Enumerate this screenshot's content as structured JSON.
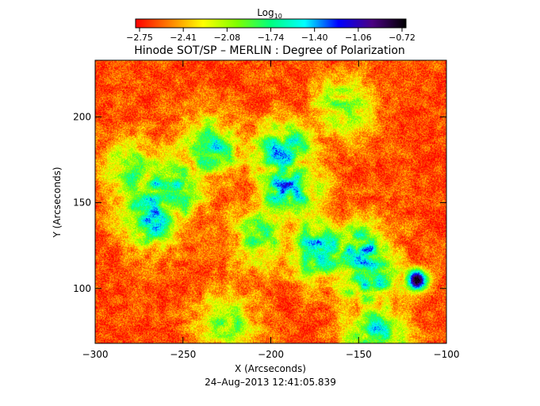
{
  "chart_data": {
    "type": "heatmap",
    "title": "Hinode SOT/SP – MERLIN : Degree of Polarization",
    "colorbar": {
      "label_main": "Log",
      "label_sub": "10",
      "ticks": [
        "−2.75",
        "−2.41",
        "−2.08",
        "−1.74",
        "−1.40",
        "−1.06",
        "−0.72"
      ],
      "min": -2.75,
      "max": -0.72,
      "colors": [
        "#ff0000",
        "#ff7f00",
        "#ffff00",
        "#7fff00",
        "#00ff7f",
        "#00ffff",
        "#0000ff",
        "#4b0082",
        "#000000"
      ]
    },
    "xlabel": "X (Arcseconds)",
    "ylabel": "Y (Arcseconds)",
    "xlim": [
      -300,
      -100
    ],
    "ylim": [
      68,
      233
    ],
    "xticks": [
      -300,
      -250,
      -200,
      -150,
      -100
    ],
    "xtick_labels": [
      "−300",
      "−250",
      "−200",
      "−150",
      "−100"
    ],
    "yticks": [
      100,
      150,
      200
    ],
    "ytick_labels": [
      "100",
      "150",
      "200"
    ],
    "background_level": -2.6,
    "features": [
      {
        "kind": "network",
        "x": -268,
        "y": 143,
        "level": -1.35
      },
      {
        "kind": "network",
        "x": -258,
        "y": 158,
        "level": -1.3
      },
      {
        "kind": "network",
        "x": -190,
        "y": 160,
        "level": -1.3
      },
      {
        "kind": "network",
        "x": -193,
        "y": 180,
        "level": -1.45
      },
      {
        "kind": "network",
        "x": -172,
        "y": 123,
        "level": -1.3
      },
      {
        "kind": "network",
        "x": -150,
        "y": 120,
        "level": -1.3
      },
      {
        "kind": "network",
        "x": -145,
        "y": 108,
        "level": -1.4
      },
      {
        "kind": "network",
        "x": -235,
        "y": 182,
        "level": -1.6
      },
      {
        "kind": "network",
        "x": -278,
        "y": 168,
        "level": -1.8
      },
      {
        "kind": "network",
        "x": -205,
        "y": 130,
        "level": -1.8
      },
      {
        "kind": "network",
        "x": -140,
        "y": 75,
        "level": -1.6
      },
      {
        "kind": "network",
        "x": -225,
        "y": 80,
        "level": -1.9
      },
      {
        "kind": "network",
        "x": -160,
        "y": 205,
        "level": -1.9
      },
      {
        "kind": "spot",
        "x": -117,
        "y": 105,
        "level": -0.75
      }
    ],
    "annotation": "24–Aug–2013 12:41:05.839"
  }
}
